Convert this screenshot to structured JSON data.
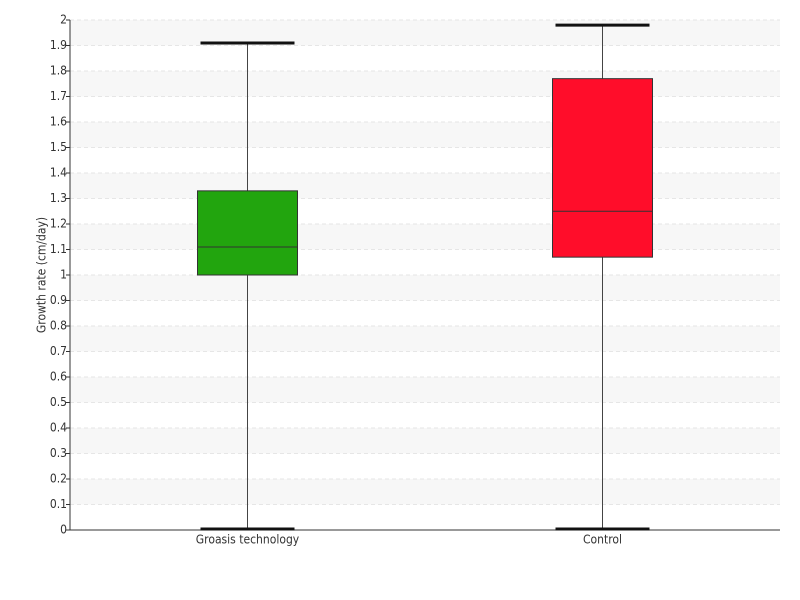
{
  "chart_data": {
    "type": "box",
    "y_label": "Growth rate (cm/day)",
    "categories": [
      "Groasis technology",
      "Control"
    ],
    "colors": [
      "#22a50e",
      "#ff0d2a"
    ],
    "min": [
      0,
      0
    ],
    "q1": [
      1.0,
      1.07
    ],
    "median": [
      1.11,
      1.25
    ],
    "q3": [
      1.33,
      1.77
    ],
    "max": [
      1.91,
      1.98
    ],
    "ylim": [
      0,
      2
    ],
    "yticks": [
      0,
      0.1,
      0.2,
      0.3,
      0.4,
      0.5,
      0.6,
      0.7,
      0.8,
      0.9,
      1,
      1.1,
      1.2,
      1.3,
      1.4,
      1.5,
      1.6,
      1.7,
      1.8,
      1.9,
      2
    ],
    "grid": true
  }
}
